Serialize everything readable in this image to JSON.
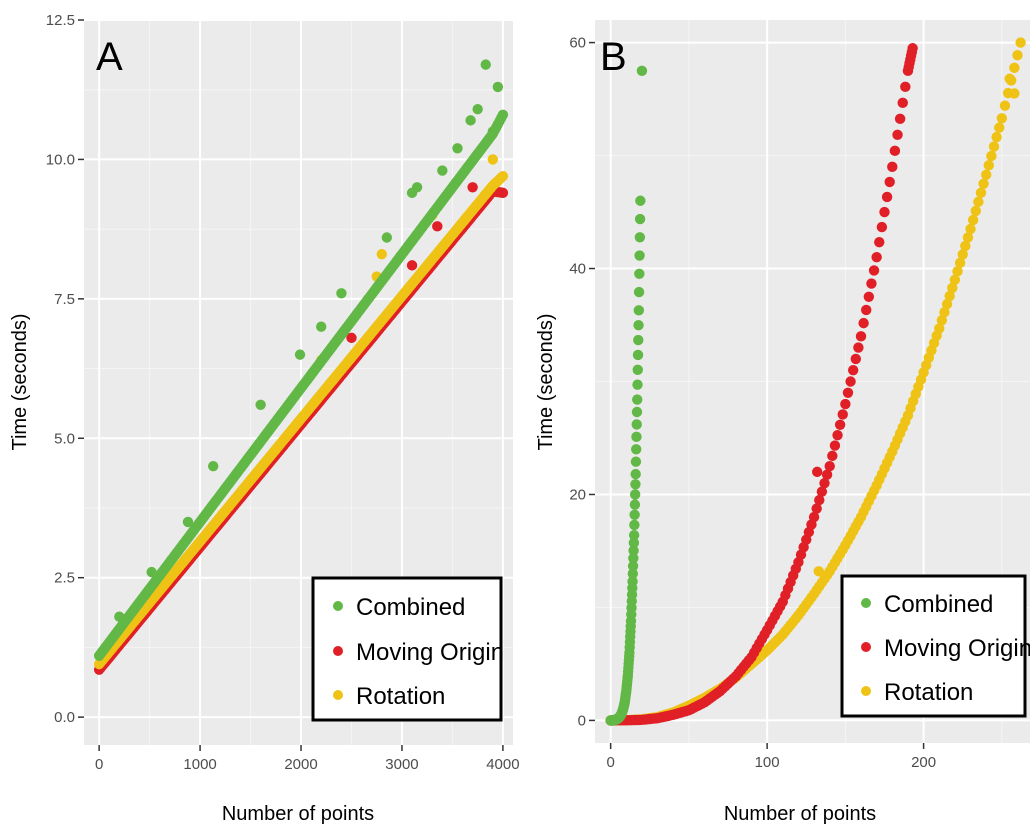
{
  "colors": {
    "panel_bg": "#ebebeb",
    "grid_major": "#ffffff",
    "grid_minor": "#f5f5f5",
    "combined": "#62b846",
    "moving_origin": "#e01f26",
    "rotation": "#eec316"
  },
  "chart_data": [
    {
      "type": "scatter",
      "panel_label": "A",
      "title": "",
      "xlabel": "Number of points",
      "ylabel": "Time (seconds)",
      "xlim": [
        -150,
        4100
      ],
      "ylim": [
        -0.5,
        12.5
      ],
      "x_ticks": [
        0,
        1000,
        2000,
        3000,
        4000
      ],
      "x_tick_labels": [
        "0",
        "1000",
        "2000",
        "3000",
        "4000"
      ],
      "y_ticks": [
        0,
        2.5,
        5,
        7.5,
        10,
        12.5
      ],
      "y_tick_labels": [
        "0.0",
        "2.5",
        "5.0",
        "7.5",
        "10.0",
        "12.5"
      ],
      "grid": true,
      "legend_position": "bottom-right",
      "series": [
        {
          "name": "Combined",
          "color": "#62b846",
          "x": [
            0,
            100,
            200,
            300,
            400,
            500,
            600,
            700,
            800,
            900,
            1000,
            1100,
            1200,
            1300,
            1400,
            1500,
            1600,
            1700,
            1800,
            1900,
            2000,
            2100,
            2200,
            2300,
            2400,
            2500,
            2600,
            2700,
            2800,
            2900,
            3000,
            3100,
            3200,
            3300,
            3400,
            3500,
            3600,
            3700,
            3800,
            3900,
            4000,
            200,
            520,
            880,
            1130,
            1600,
            1990,
            2200,
            2400,
            2850,
            3100,
            3150,
            3400,
            3550,
            3680,
            3750,
            3830,
            3900,
            3950
          ],
          "y": [
            1.1,
            1.34,
            1.58,
            1.82,
            2.06,
            2.3,
            2.54,
            2.78,
            3.02,
            3.26,
            3.5,
            3.74,
            3.98,
            4.22,
            4.46,
            4.7,
            4.94,
            5.18,
            5.42,
            5.66,
            5.9,
            6.14,
            6.38,
            6.62,
            6.86,
            7.1,
            7.34,
            7.58,
            7.82,
            8.06,
            8.3,
            8.54,
            8.78,
            9.02,
            9.26,
            9.5,
            9.74,
            9.98,
            10.22,
            10.46,
            10.8,
            1.8,
            2.6,
            3.5,
            4.5,
            5.6,
            6.5,
            7.0,
            7.6,
            8.6,
            9.4,
            9.5,
            9.8,
            10.2,
            10.7,
            10.9,
            11.7,
            10.5,
            11.3
          ]
        },
        {
          "name": "Moving Origin",
          "color": "#e01f26",
          "x": [
            0,
            100,
            200,
            300,
            400,
            500,
            600,
            700,
            800,
            900,
            1000,
            1100,
            1200,
            1300,
            1400,
            1500,
            1600,
            1700,
            1800,
            1900,
            2000,
            2100,
            2200,
            2300,
            2400,
            2500,
            2600,
            2700,
            2800,
            2900,
            3000,
            3100,
            3200,
            3300,
            3400,
            3500,
            3600,
            3700,
            3800,
            3900,
            4000,
            2500,
            3100,
            3350,
            3700
          ],
          "y": [
            0.85,
            1.07,
            1.29,
            1.51,
            1.73,
            1.95,
            2.17,
            2.39,
            2.61,
            2.83,
            3.05,
            3.27,
            3.49,
            3.71,
            3.93,
            4.15,
            4.37,
            4.59,
            4.81,
            5.03,
            5.25,
            5.47,
            5.69,
            5.91,
            6.13,
            6.35,
            6.57,
            6.79,
            7.01,
            7.23,
            7.45,
            7.67,
            7.89,
            8.11,
            8.33,
            8.55,
            8.77,
            8.99,
            9.21,
            9.43,
            9.4,
            6.8,
            8.1,
            8.8,
            9.5
          ]
        },
        {
          "name": "Rotation",
          "color": "#eec316",
          "x": [
            0,
            100,
            200,
            300,
            400,
            500,
            600,
            700,
            800,
            900,
            1000,
            1100,
            1200,
            1300,
            1400,
            1500,
            1600,
            1700,
            1800,
            1900,
            2000,
            2100,
            2200,
            2300,
            2400,
            2500,
            2600,
            2700,
            2800,
            2900,
            3000,
            3100,
            3200,
            3300,
            3400,
            3500,
            3600,
            3700,
            3800,
            3900,
            4000,
            2200,
            2750,
            2800,
            3300,
            3900
          ],
          "y": [
            0.95,
            1.17,
            1.39,
            1.61,
            1.83,
            2.05,
            2.27,
            2.49,
            2.71,
            2.93,
            3.15,
            3.37,
            3.59,
            3.81,
            4.03,
            4.25,
            4.47,
            4.69,
            4.91,
            5.13,
            5.35,
            5.57,
            5.79,
            6.01,
            6.23,
            6.45,
            6.67,
            6.89,
            7.11,
            7.33,
            7.55,
            7.77,
            7.99,
            8.21,
            8.43,
            8.65,
            8.87,
            9.09,
            9.31,
            9.53,
            9.7,
            6.4,
            7.9,
            8.3,
            9.0,
            10.0
          ]
        }
      ]
    },
    {
      "type": "scatter",
      "panel_label": "B",
      "title": "",
      "xlabel": "Number of points",
      "ylabel": "Time (seconds)",
      "xlim": [
        -10,
        268
      ],
      "ylim": [
        -2,
        62
      ],
      "x_ticks": [
        0,
        100,
        200
      ],
      "x_tick_labels": [
        "0",
        "100",
        "200"
      ],
      "y_ticks": [
        0,
        20,
        40,
        60
      ],
      "y_tick_labels": [
        "0",
        "20",
        "40",
        "60"
      ],
      "grid": true,
      "legend_position": "bottom-right",
      "series": [
        {
          "name": "Combined",
          "color": "#62b846",
          "x": [
            0,
            1,
            2,
            3,
            4,
            5,
            6,
            7,
            8,
            9,
            10,
            11,
            12,
            13,
            14,
            15,
            16,
            17,
            18,
            19
          ],
          "y": [
            0,
            0,
            0.02,
            0.06,
            0.1,
            0.2,
            0.35,
            0.6,
            1.0,
            1.6,
            2.6,
            4.0,
            6.0,
            8.8,
            12.3,
            16.4,
            21.8,
            28.4,
            36.3,
            46.0
          ],
          "extra_points": {
            "x": [
              20
            ],
            "y": [
              57.5
            ]
          }
        },
        {
          "name": "Moving Origin",
          "color": "#e01f26",
          "x": [
            0,
            10,
            20,
            30,
            40,
            50,
            60,
            70,
            80,
            90,
            100,
            110,
            120,
            130,
            140,
            150,
            160,
            170,
            180,
            190,
            193
          ],
          "y": [
            0,
            0.01,
            0.05,
            0.2,
            0.5,
            0.9,
            1.6,
            2.6,
            3.9,
            5.6,
            8.0,
            10.5,
            14.0,
            18.0,
            22.5,
            28.0,
            34.0,
            41.0,
            49.0,
            57.5,
            59.5
          ],
          "extra_points": {
            "x": [
              132
            ],
            "y": [
              22.0
            ]
          }
        },
        {
          "name": "Rotation",
          "color": "#eec316",
          "x": [
            0,
            10,
            20,
            30,
            40,
            50,
            60,
            70,
            80,
            90,
            100,
            110,
            120,
            130,
            140,
            150,
            160,
            170,
            180,
            190,
            200,
            210,
            220,
            230,
            240,
            250,
            262
          ],
          "y": [
            0,
            0.02,
            0.1,
            0.3,
            0.7,
            1.3,
            2.0,
            2.8,
            3.8,
            5.0,
            6.2,
            7.6,
            9.3,
            11.2,
            13.2,
            15.5,
            18.0,
            20.8,
            23.8,
            27.0,
            30.8,
            34.7,
            39.0,
            43.5,
            48.3,
            53.3,
            60.0
          ],
          "extra_points": {
            "x": [
              133,
              255,
              258
            ],
            "y": [
              13.2,
              56.8,
              55.5
            ]
          }
        }
      ]
    }
  ]
}
